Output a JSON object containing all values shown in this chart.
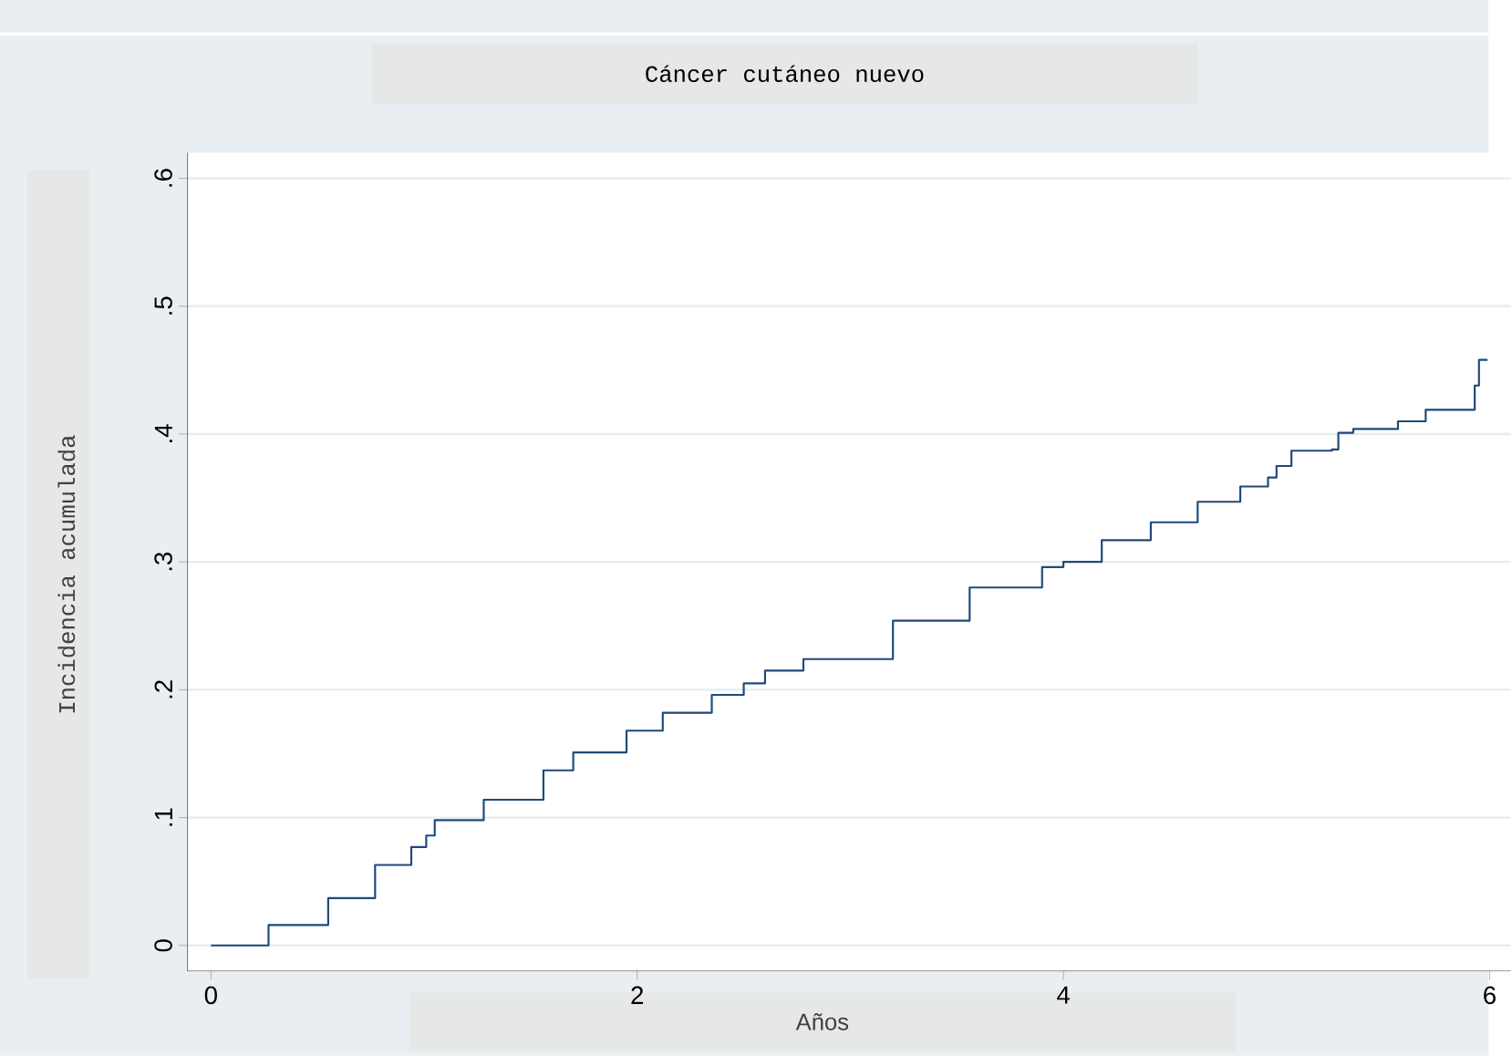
{
  "chart_data": {
    "type": "step",
    "title": "Cáncer cutáneo nuevo",
    "xlabel": "Años",
    "ylabel": "Incidencia acumulada",
    "x": [
      0,
      0.08,
      0.27,
      0.55,
      0.77,
      0.94,
      1.01,
      1.05,
      1.28,
      1.56,
      1.7,
      1.95,
      2.12,
      2.35,
      2.5,
      2.6,
      2.78,
      3.2,
      3.56,
      3.9,
      4.0,
      4.18,
      4.41,
      4.63,
      4.83,
      4.96,
      5.0,
      5.07,
      5.26,
      5.29,
      5.36,
      5.57,
      5.7,
      5.93,
      5.95,
      5.99
    ],
    "values": [
      0,
      0,
      0.016,
      0.037,
      0.063,
      0.077,
      0.086,
      0.098,
      0.114,
      0.137,
      0.151,
      0.168,
      0.182,
      0.196,
      0.205,
      0.215,
      0.224,
      0.254,
      0.28,
      0.296,
      0.3,
      0.317,
      0.331,
      0.347,
      0.359,
      0.366,
      0.375,
      0.387,
      0.388,
      0.401,
      0.404,
      0.41,
      0.419,
      0.438,
      0.458,
      0.458
    ],
    "color": "#1f4a78",
    "xlim": [
      -0.11,
      6.1
    ],
    "ylim": [
      -0.02,
      0.62
    ],
    "xticks": [
      0,
      2,
      4,
      6
    ],
    "yticks": [
      0,
      {
        "value": 0.1,
        "label": ".1"
      },
      {
        "value": 0.2,
        "label": ".2"
      },
      {
        "value": 0.3,
        "label": ".3"
      },
      {
        "value": 0.4,
        "label": ".4"
      },
      {
        "value": 0.5,
        "label": ".5"
      },
      {
        "value": 0.6,
        "label": ".6"
      }
    ],
    "grid": "y"
  }
}
